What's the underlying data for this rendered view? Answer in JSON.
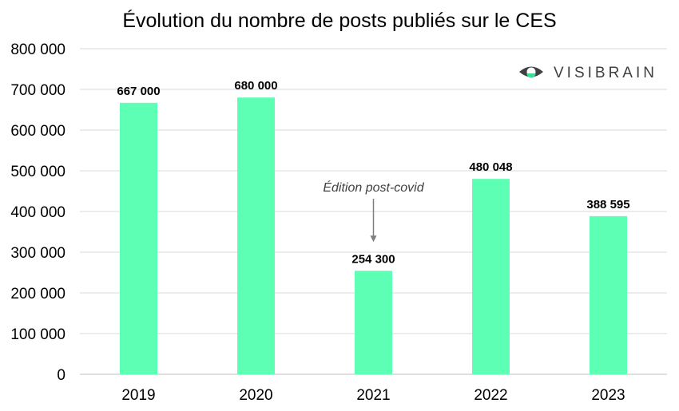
{
  "chart_data": {
    "type": "bar",
    "title": "Évolution du nombre de posts publiés sur le CES",
    "categories": [
      "2019",
      "2020",
      "2021",
      "2022",
      "2023"
    ],
    "values": [
      667000,
      680000,
      254300,
      480048,
      388595
    ],
    "value_labels": [
      "667 000",
      "680 000",
      "254 300",
      "480 048",
      "388 595"
    ],
    "ylim": [
      0,
      800000
    ],
    "yticks": [
      0,
      100000,
      200000,
      300000,
      400000,
      500000,
      600000,
      700000,
      800000
    ],
    "ytick_labels": [
      "0",
      "100 000",
      "200 000",
      "300 000",
      "400 000",
      "500 000",
      "600 000",
      "700 000",
      "800 000"
    ],
    "xlabel": "",
    "ylabel": "",
    "grid": true,
    "legend": "none",
    "bar_color": "#5cffb4",
    "annotation": {
      "text": "Édition post-covid",
      "category": "2021"
    }
  },
  "logo": {
    "text": "VISIBRAIN",
    "icon": "eye-icon"
  }
}
